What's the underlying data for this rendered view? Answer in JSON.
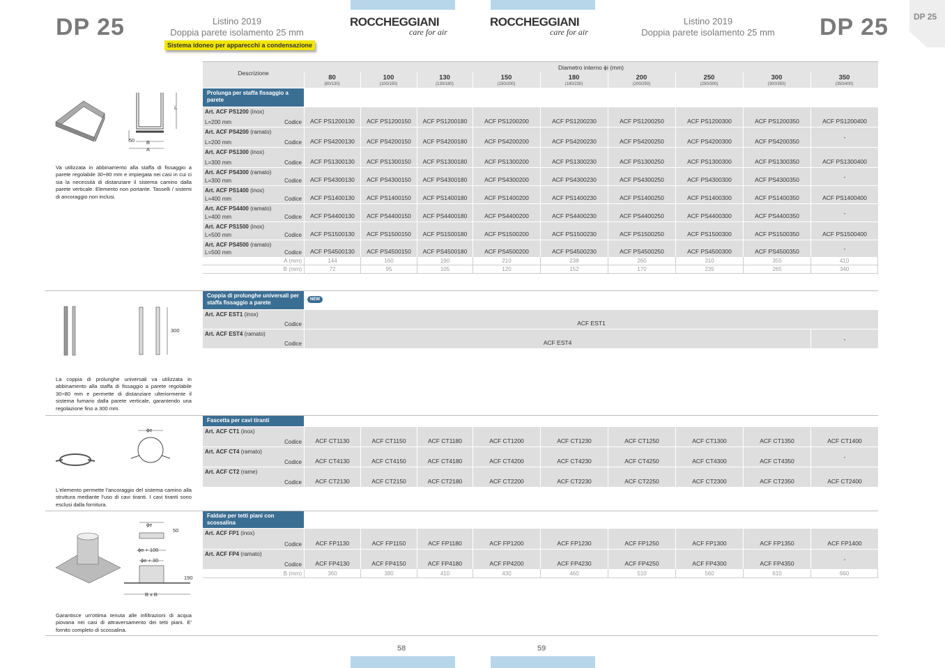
{
  "header": {
    "left": {
      "code": "DP 25",
      "line1": "Listino 2019",
      "line2": "Doppia parete isolamento 25 mm",
      "badge": "Sistema idoneo per apparecchi a condensazione"
    },
    "logos": [
      {
        "name": "ROCCHEGGIANI",
        "tagline": "care for air"
      },
      {
        "name": "ROCCHEGGIANI",
        "tagline": "care for air"
      }
    ],
    "right": {
      "line1": "Listino 2019",
      "line2": "Doppia parete isolamento 25 mm",
      "code": "DP 25"
    },
    "tab": "DP 25"
  },
  "table": {
    "description_header": "Descrizione",
    "diameter_header": "Diametro interno ϕi (mm)",
    "columns": [
      {
        "d": "80",
        "sub": "(80/130)"
      },
      {
        "d": "100",
        "sub": "(100/150)"
      },
      {
        "d": "130",
        "sub": "(130/180)"
      },
      {
        "d": "150",
        "sub": "(150/200)"
      },
      {
        "d": "180",
        "sub": "(180/230)"
      },
      {
        "d": "200",
        "sub": "(200/250)"
      },
      {
        "d": "250",
        "sub": "(250/300)"
      },
      {
        "d": "300",
        "sub": "(300/350)"
      },
      {
        "d": "350",
        "sub": "(350/400)"
      }
    ]
  },
  "sections": [
    {
      "title": "Prolunga per staffa fissaggio a parete",
      "description": "Va utilizzata in abbinamento alla staffa di fissaggio a parete regolabile 30÷80 mm e impiegata nei casi in cui ci sia la necessità di distanziare il sistema camino dalla parete verticale. Elemento non portante. Tasselli / sistemi di ancoraggio non inclusi.",
      "diagram_labels": [
        "L",
        "50",
        "B",
        "A"
      ],
      "rows": [
        {
          "art": "Art. ACF PS1200",
          "mat": "(inox)",
          "len": "L=200 mm",
          "label": "Codice",
          "codes": [
            "ACF PS1200130",
            "ACF PS1200150",
            "ACF PS1200180",
            "ACF PS1200200",
            "ACF PS1200230",
            "ACF PS1200250",
            "ACF PS1200300",
            "ACF PS1200350",
            "ACF PS1200400"
          ]
        },
        {
          "art": "Art. ACF PS4200",
          "mat": "(ramato)",
          "len": "L=200 mm",
          "label": "Codice",
          "codes": [
            "ACF PS4200130",
            "ACF PS4200150",
            "ACF PS4200180",
            "ACF PS4200200",
            "ACF PS4200230",
            "ACF PS4200250",
            "ACF PS4200300",
            "ACF PS4200350",
            "-"
          ]
        },
        {
          "art": "Art. ACF PS1300",
          "mat": "(inox)",
          "len": "L=300 mm",
          "label": "Codice",
          "codes": [
            "ACF PS1300130",
            "ACF PS1300150",
            "ACF PS1300180",
            "ACF PS1300200",
            "ACF PS1300230",
            "ACF PS1300250",
            "ACF PS1300300",
            "ACF PS1300350",
            "ACF PS1300400"
          ]
        },
        {
          "art": "Art. ACF PS4300",
          "mat": "(ramato)",
          "len": "L=300 mm",
          "label": "Codice",
          "codes": [
            "ACF PS4300130",
            "ACF PS4300150",
            "ACF PS4300180",
            "ACF PS4300200",
            "ACF PS4300230",
            "ACF PS4300250",
            "ACF PS4300300",
            "ACF PS4300350",
            "-"
          ]
        },
        {
          "art": "Art. ACF PS1400",
          "mat": "(inox)",
          "len": "L=400 mm",
          "label": "Codice",
          "codes": [
            "ACF PS1400130",
            "ACF PS1400150",
            "ACF PS1400180",
            "ACF PS1400200",
            "ACF PS1400230",
            "ACF PS1400250",
            "ACF PS1400300",
            "ACF PS1400350",
            "ACF PS1400400"
          ]
        },
        {
          "art": "Art. ACF PS4400",
          "mat": "(ramato)",
          "len": "L=400 mm",
          "label": "Codice",
          "codes": [
            "ACF PS4400130",
            "ACF PS4400150",
            "ACF PS4400180",
            "ACF PS4400200",
            "ACF PS4400230",
            "ACF PS4400250",
            "ACF PS4400300",
            "ACF PS4400350",
            "-"
          ]
        },
        {
          "art": "Art. ACF PS1500",
          "mat": "(inox)",
          "len": "L=500 mm",
          "label": "Codice",
          "codes": [
            "ACF PS1500130",
            "ACF PS1500150",
            "ACF PS1500180",
            "ACF PS1500200",
            "ACF PS1500230",
            "ACF PS1500250",
            "ACF PS1500300",
            "ACF PS1500350",
            "ACF PS1500400"
          ]
        },
        {
          "art": "Art. ACF PS4500",
          "mat": "(ramato)",
          "len": "L=500 mm",
          "label": "Codice",
          "codes": [
            "ACF PS4500130",
            "ACF PS4500150",
            "ACF PS4500180",
            "ACF PS4500200",
            "ACF PS4500230",
            "ACF PS4500250",
            "ACF PS4500300",
            "ACF PS4500350",
            "-"
          ]
        }
      ],
      "dimensions": [
        {
          "label": "A (mm)",
          "values": [
            144,
            160,
            190,
            210,
            238,
            260,
            310,
            355,
            410
          ]
        },
        {
          "label": "B (mm)",
          "values": [
            72,
            95,
            105,
            120,
            152,
            170,
            235,
            265,
            340
          ]
        }
      ]
    },
    {
      "title": "Coppia di prolunghe universali per staffa fissaggio a parete",
      "badge": "NEW",
      "description": "La coppia di prolunghe universali va utilizzata in abbinamento alla staffa di fissaggio a parete regolabile 30÷80 mm e permette di distanziare ulteriormente il sistema fumario dalla parete verticale, garantendo una regolazione fino a 300 mm.",
      "diagram_labels": [
        "300"
      ],
      "rows": [
        {
          "art": "Art. ACF EST1",
          "mat": "(inox)",
          "label": "Codice",
          "codes": [
            "ACF EST1"
          ]
        },
        {
          "art": "Art. ACF EST4",
          "mat": "(ramato)",
          "label": "Codice",
          "codes": [
            "ACF EST4",
            "-"
          ]
        }
      ]
    },
    {
      "title": "Fascetta per cavi tiranti",
      "description": "L'elemento permette l'ancoraggio del sistema camino alla struttura mediante l'uso di cavi tiranti. I cavi tiranti sono esclusi dalla fornitura.",
      "diagram_labels": [
        "ϕe"
      ],
      "rows": [
        {
          "art": "Art. ACF CT1",
          "mat": "(inox)",
          "label": "Codice",
          "codes": [
            "ACF CT1130",
            "ACF CT1150",
            "ACF CT1180",
            "ACF CT1200",
            "ACF CT1230",
            "ACF CT1250",
            "ACF CT1300",
            "ACF CT1350",
            "ACF CT1400"
          ]
        },
        {
          "art": "Art. ACF CT4",
          "mat": "(ramato)",
          "label": "Codice",
          "codes": [
            "ACF CT4130",
            "ACF CT4150",
            "ACF CT4180",
            "ACF CT4200",
            "ACF CT4230",
            "ACF CT4250",
            "ACF CT4300",
            "ACF CT4350",
            "-"
          ]
        },
        {
          "art": "Art. ACF CT2",
          "mat": "(rame)",
          "label": "Codice",
          "codes": [
            "ACF CT2130",
            "ACF CT2150",
            "ACF CT2180",
            "ACF CT2200",
            "ACF CT2230",
            "ACF CT2250",
            "ACF CT2300",
            "ACF CT2350",
            "ACF CT2400"
          ]
        }
      ]
    },
    {
      "title": "Faldale per tetti piani con scossalina",
      "description": "Garantisce un'ottima tenuta alle infiltrazioni di acqua piovana nei casi di attraversamento dei tetti piani. E' fornito completo di scossalina.",
      "diagram_labels": [
        "ϕe",
        "50",
        "ϕe + 100",
        "ϕe + 30",
        "190",
        "B x B"
      ],
      "rows": [
        {
          "art": "Art. ACF FP1",
          "mat": "(inox)",
          "label": "Codice",
          "codes": [
            "ACF FP1130",
            "ACF FP1150",
            "ACF FP1180",
            "ACF FP1200",
            "ACF FP1230",
            "ACF FP1250",
            "ACF FP1300",
            "ACF FP1350",
            "ACF FP1400"
          ]
        },
        {
          "art": "Art. ACF FP4",
          "mat": "(ramato)",
          "label": "Codice",
          "codes": [
            "ACF FP4130",
            "ACF FP4150",
            "ACF FP4180",
            "ACF FP4200",
            "ACF FP4230",
            "ACF FP4250",
            "ACF FP4300",
            "ACF FP4350",
            "-"
          ]
        }
      ],
      "dimensions": [
        {
          "label": "B (mm)",
          "values": [
            360,
            380,
            410,
            430,
            460,
            510,
            560,
            610,
            660
          ]
        }
      ]
    }
  ],
  "footer": {
    "pages": [
      "58",
      "59"
    ]
  }
}
